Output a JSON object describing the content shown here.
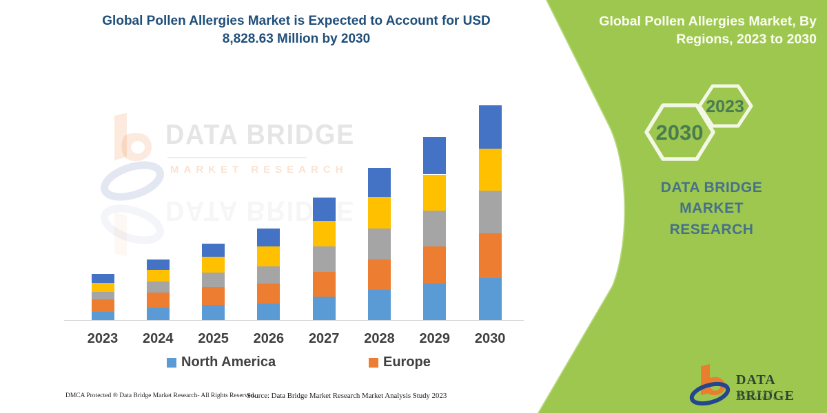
{
  "left_panel": {
    "title_line1": "Global Pollen Allergies Market is Expected to Account for USD",
    "title_line2": "8,828.63 Million by 2030",
    "footer_left": "DMCA Protected ® Data Bridge Market Research-  All Rights Reserved.",
    "footer_right": "Source: Data Bridge Market Research  Market Analysis Study 2023",
    "watermark_brand": "DATA BRIDGE",
    "watermark_sub": "MARKET RESEARCH"
  },
  "chart_data": {
    "type": "bar",
    "stacked": true,
    "title": "",
    "xlabel": "",
    "ylabel": "",
    "grid": false,
    "y_axis_visible": false,
    "legend_position": "bottom",
    "units": "USD Million",
    "values_note": "Segment values estimated from bar heights; scaled so the 2030 total equals the stated USD 8,828.63 Million",
    "categories": [
      "2023",
      "2024",
      "2025",
      "2026",
      "2027",
      "2028",
      "2029",
      "2030"
    ],
    "series": [
      {
        "name": "North America",
        "color": "#5B9BD5",
        "values": [
          331,
          501,
          614,
          671,
          954,
          1237,
          1492,
          1727
        ]
      },
      {
        "name": "Europe",
        "color": "#ED7D31",
        "values": [
          518,
          632,
          756,
          821,
          1028,
          1266,
          1538,
          1832
        ]
      },
      {
        "name": "",
        "color": "#A5A5A5",
        "values": [
          311,
          445,
          586,
          728,
          1048,
          1254,
          1481,
          1775
        ]
      },
      {
        "name": "",
        "color": "#FFC000",
        "values": [
          377,
          501,
          643,
          813,
          1039,
          1322,
          1481,
          1719
        ]
      },
      {
        "name": "",
        "color": "#4472C4",
        "values": [
          351,
          405,
          547,
          728,
          983,
          1181,
          1538,
          1775.63
        ]
      }
    ],
    "totals": [
      1888,
      2484,
      3146,
      3761,
      5052,
      6260,
      7530,
      8828.63
    ],
    "legend": [
      {
        "label": "North America",
        "color": "#5B9BD5"
      },
      {
        "label": "Europe",
        "color": "#ED7D31"
      }
    ]
  },
  "right_panel": {
    "title_line1": "Global Pollen Allergies Market, By",
    "title_line2": "Regions, 2023 to 2030",
    "hex_large_label": "2030",
    "hex_small_label": "2023",
    "brand_line1": "DATA BRIDGE MARKET",
    "brand_line2": "RESEARCH"
  },
  "logo": {
    "brand": "DATA BRIDGE",
    "sub": "MARKET RESEARCH"
  },
  "colors": {
    "title_navy": "#1F4E79",
    "panel_green": "#9DC74E",
    "hexagon_stroke": "#F3F7E6",
    "hexagon_text_green": "#4A7C52",
    "dbmr_steel_blue": "#47708A",
    "logo_orange": "#E87E2E",
    "logo_blue": "#24468F",
    "axis_line_gray": "#D6D6D6",
    "axis_label_gray": "#3F3F3F"
  }
}
